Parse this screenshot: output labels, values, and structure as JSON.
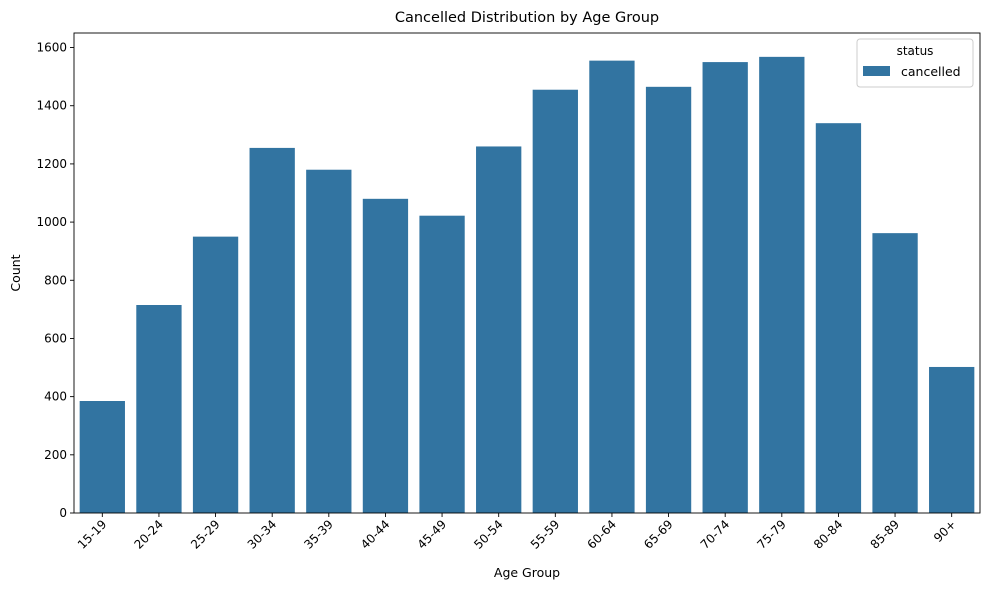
{
  "chart_data": {
    "type": "bar",
    "title": "Cancelled Distribution by Age Group",
    "xlabel": "Age Group",
    "ylabel": "Count",
    "categories": [
      "15-19",
      "20-24",
      "25-29",
      "30-34",
      "35-39",
      "40-44",
      "45-49",
      "50-54",
      "55-59",
      "60-64",
      "65-69",
      "70-74",
      "75-79",
      "80-84",
      "85-89",
      "90+"
    ],
    "series": [
      {
        "name": "cancelled",
        "color": "#3274a1",
        "values": [
          385,
          715,
          950,
          1255,
          1180,
          1080,
          1022,
          1260,
          1455,
          1555,
          1465,
          1550,
          1568,
          1340,
          962,
          502
        ]
      }
    ],
    "ylim": [
      0,
      1650
    ],
    "yticks": [
      0,
      200,
      400,
      600,
      800,
      1000,
      1200,
      1400,
      1600
    ],
    "legend": {
      "title": "status",
      "placement": "top-right"
    },
    "grid": false
  }
}
